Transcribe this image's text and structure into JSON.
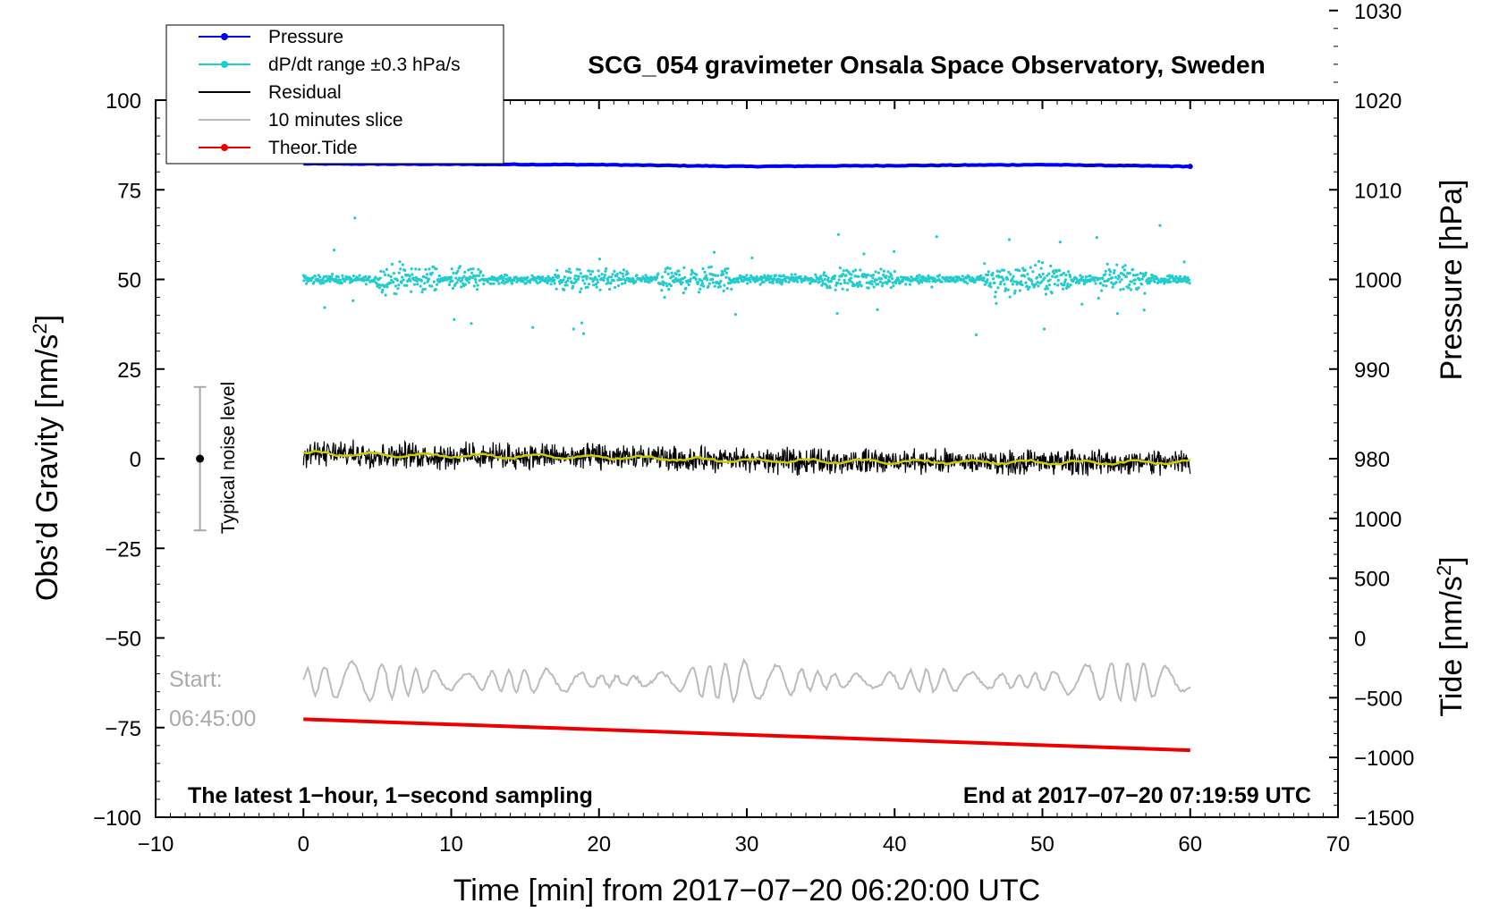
{
  "chart_data": {
    "type": "line",
    "title": "SCG_054 gravimeter Onsala Space Observatory, Sweden",
    "xlabel": "Time [min] from 2017−07−20 06:20:00 UTC",
    "ylabel_main": "Obs’d Gravity [nm/s",
    "ylabel_main_sup": "2",
    "ylabel_main_end": "]",
    "ylabel_pressure": "Pressure [hPa]",
    "ylabel_tide": "Tide [nm/s",
    "ylabel_tide_sup": "2",
    "ylabel_tide_end": "]",
    "xlim": [
      -10,
      70
    ],
    "ylim": [
      -100,
      100
    ],
    "x_ticks": [
      -10,
      0,
      10,
      20,
      30,
      40,
      50,
      60,
      70
    ],
    "x_tick_labels": [
      "−10",
      "0",
      "10",
      "20",
      "30",
      "40",
      "50",
      "60",
      "70"
    ],
    "y_ticks": [
      -100,
      -75,
      -50,
      -25,
      0,
      25,
      50,
      75,
      100
    ],
    "y_tick_labels": [
      "−100",
      "−75",
      "−50",
      "−25",
      "0",
      "25",
      "50",
      "75",
      "100"
    ],
    "pressure_axis": {
      "ylim": [
        970,
        1030
      ],
      "ticks": [
        980,
        990,
        1000,
        1010,
        1020,
        1030
      ],
      "tick_labels": [
        "980",
        "990",
        "1000",
        "1010",
        "1020",
        "1030"
      ]
    },
    "tide_axis": {
      "ylim": [
        -1500,
        1000
      ],
      "ticks": [
        -1500,
        -1000,
        -500,
        0,
        500,
        1000
      ],
      "tick_labels": [
        "−1500",
        "−1000",
        "−500",
        "0",
        "500",
        "1000"
      ]
    },
    "legend": {
      "position": "top-left",
      "entries": [
        {
          "label": "Pressure",
          "color": "#0000ee",
          "marker": true
        },
        {
          "label": "dP/dt range ±0.3 hPa/s",
          "color": "#22cccc",
          "marker": true
        },
        {
          "label": "Residual",
          "color": "#000000",
          "marker": false
        },
        {
          "label": "10 minutes slice",
          "color": "#bbbbbb",
          "marker": false
        },
        {
          "label": "Theor.Tide",
          "color": "#ee0000",
          "marker": true
        }
      ]
    },
    "series": [
      {
        "name": "Pressure",
        "axis": "pressure",
        "color": "#0000ee",
        "x": [
          0,
          10,
          20,
          30,
          40,
          50,
          60
        ],
        "values": [
          1012.9,
          1012.85,
          1012.8,
          1012.6,
          1012.7,
          1012.8,
          1012.6
        ]
      },
      {
        "name": "dP/dt range ±0.3 hPa/s",
        "axis": "main",
        "color": "#22cccc",
        "center": 50,
        "spread": 17,
        "x_range": [
          0,
          60
        ]
      },
      {
        "name": "Residual",
        "axis": "main",
        "color": "#000000",
        "x": [
          0,
          10,
          20,
          30,
          40,
          50,
          60
        ],
        "values": [
          1.5,
          0.8,
          0.5,
          -0.5,
          -0.8,
          -1.0,
          -1.0
        ],
        "noise": 3
      },
      {
        "name": "Residual smoothed",
        "axis": "main",
        "color": "#cccc00",
        "x": [
          0,
          10,
          20,
          30,
          40,
          50,
          60
        ],
        "values": [
          1.5,
          0.8,
          0.5,
          -0.5,
          -0.8,
          -1.0,
          -1.0
        ]
      },
      {
        "name": "10 minutes slice",
        "axis": "main",
        "color": "#bbbbbb",
        "center": -62,
        "amplitude": 3,
        "x_range": [
          0,
          60
        ]
      },
      {
        "name": "Theor.Tide",
        "axis": "tide",
        "color": "#ee0000",
        "x": [
          0,
          60
        ],
        "values": [
          -680,
          -940
        ]
      }
    ],
    "noise_bar": {
      "label": "Typical noise level",
      "x": -7,
      "center": 0,
      "low": -20,
      "high": 20
    },
    "annotations": {
      "bottom_left": "The latest 1−hour, 1−second sampling",
      "bottom_right": "End at 2017−07−20 07:19:59 UTC",
      "start_label": "Start:",
      "start_time": "06:45:00"
    }
  }
}
